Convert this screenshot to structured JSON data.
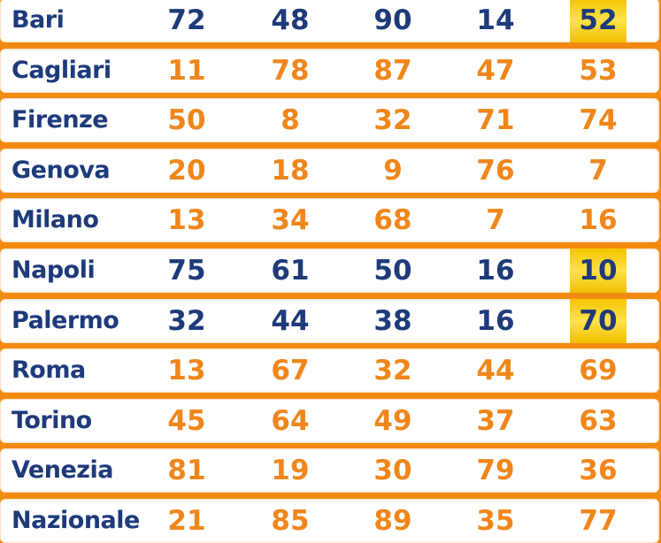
{
  "colors": {
    "city": "#1e3a7a",
    "number_default": "#f0861a",
    "number_hit_row": "#1e3a7a",
    "highlight": "#f7d31c",
    "border": "#f28a12"
  },
  "rows": [
    {
      "city": "Bari",
      "numbers": [
        "72",
        "48",
        "90",
        "14",
        "52"
      ],
      "hit": true,
      "highlight": [
        4
      ]
    },
    {
      "city": "Cagliari",
      "numbers": [
        "11",
        "78",
        "87",
        "47",
        "53"
      ],
      "hit": false,
      "highlight": []
    },
    {
      "city": "Firenze",
      "numbers": [
        "50",
        "8",
        "32",
        "71",
        "74"
      ],
      "hit": false,
      "highlight": []
    },
    {
      "city": "Genova",
      "numbers": [
        "20",
        "18",
        "9",
        "76",
        "7"
      ],
      "hit": false,
      "highlight": []
    },
    {
      "city": "Milano",
      "numbers": [
        "13",
        "34",
        "68",
        "7",
        "16"
      ],
      "hit": false,
      "highlight": []
    },
    {
      "city": "Napoli",
      "numbers": [
        "75",
        "61",
        "50",
        "16",
        "10"
      ],
      "hit": true,
      "highlight": [
        4
      ]
    },
    {
      "city": "Palermo",
      "numbers": [
        "32",
        "44",
        "38",
        "16",
        "70"
      ],
      "hit": true,
      "highlight": [
        4
      ]
    },
    {
      "city": "Roma",
      "numbers": [
        "13",
        "67",
        "32",
        "44",
        "69"
      ],
      "hit": false,
      "highlight": []
    },
    {
      "city": "Torino",
      "numbers": [
        "45",
        "64",
        "49",
        "37",
        "63"
      ],
      "hit": false,
      "highlight": []
    },
    {
      "city": "Venezia",
      "numbers": [
        "81",
        "19",
        "30",
        "79",
        "36"
      ],
      "hit": false,
      "highlight": []
    },
    {
      "city": "Nazionale",
      "numbers": [
        "21",
        "85",
        "89",
        "35",
        "77"
      ],
      "hit": false,
      "highlight": []
    }
  ]
}
